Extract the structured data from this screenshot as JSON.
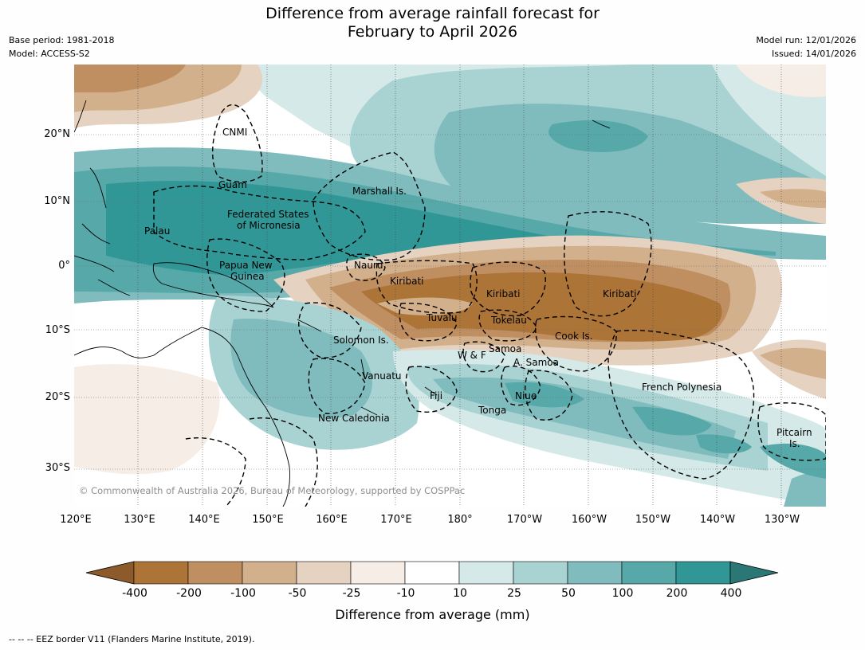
{
  "title": {
    "line1": "Difference from average rainfall forecast for",
    "line2": "February to April 2026"
  },
  "meta": {
    "base_period": "Base period: 1981-2018",
    "model": "Model: ACCESS-S2",
    "model_run": "Model run: 12/01/2026",
    "issued": "Issued: 14/01/2026"
  },
  "axes": {
    "lat_labels": [
      "20°N",
      "10°N",
      "0°",
      "10°S",
      "20°S",
      "30°S"
    ],
    "lon_labels": [
      "120°E",
      "130°E",
      "140°E",
      "150°E",
      "160°E",
      "170°E",
      "180°",
      "170°W",
      "160°W",
      "150°W",
      "140°W",
      "130°W"
    ]
  },
  "regions": {
    "cnmi": "CNMI",
    "guam": "Guam",
    "marshall": "Marshall Is.",
    "fsm_1": "Federated States",
    "fsm_2": "of Micronesia",
    "palau": "Palau",
    "png_1": "Papua New",
    "png_2": "Guinea",
    "nauru": "Nauru",
    "kiribati_w": "Kiribati",
    "kiribati_c": "Kiribati",
    "kiribati_e": "Kiribati",
    "tuvalu": "Tuvalu",
    "tokelau": "Tokelau",
    "cook": "Cook Is.",
    "solomon": "Solomon Is.",
    "wf": "W & F",
    "samoa": "Samoa",
    "asamoa": "A. Samoa",
    "vanuatu": "Vanuatu",
    "fiji": "Fiji",
    "niue": "Niue",
    "tonga": "Tonga",
    "frenchpoly": "French Polynesia",
    "newcal": "New Caledonia",
    "pitcairn_1": "Pitcairn",
    "pitcairn_2": "Is."
  },
  "copyright": "© Commonwealth of Australia 2026, Bureau of Meteorology, supported by COSPPac",
  "colorbar": {
    "ticks": [
      "-400",
      "-200",
      "-100",
      "-50",
      "-25",
      "-10",
      "10",
      "25",
      "50",
      "100",
      "200",
      "400"
    ],
    "colors": [
      "#8c5a2b",
      "#ad7438",
      "#c08f61",
      "#d3b08c",
      "#e6d2c1",
      "#f5ede6",
      "#ffffff",
      "#d4e9e8",
      "#a9d3d2",
      "#80bcbd",
      "#56a8a9",
      "#319796",
      "#2b7775"
    ],
    "title": "Difference from average (mm)"
  },
  "footnote": "--  --  -- EEZ border V11 (Flanders Marine Institute, 2019)."
}
